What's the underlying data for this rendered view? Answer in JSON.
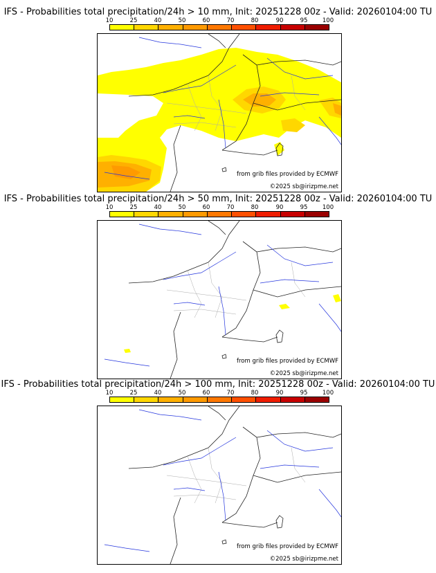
{
  "palette": [
    "#ffff00",
    "#ffd700",
    "#ffb000",
    "#ff9a00",
    "#ff7800",
    "#ff5000",
    "#ef1d00",
    "#c80000",
    "#9a0000",
    "#6a0000"
  ],
  "scale_ticks": [
    "10",
    "25",
    "40",
    "50",
    "60",
    "70",
    "80",
    "90",
    "95",
    "100"
  ],
  "panels": [
    {
      "title": "IFS - Probabilities total precipitation/24h > 10 mm, Init: 20251228 00z - Valid: 20260104:00 TU",
      "credit_source": "from grib files provided by ECMWF",
      "credit_copyright": "©2025 sb@irizpme.net",
      "threshold_mm": 10
    },
    {
      "title": "IFS - Probabilities total precipitation/24h > 50 mm, Init: 20251228 00z - Valid: 20260104:00 TU",
      "credit_source": "from grib files provided by ECMWF",
      "credit_copyright": "©2025 sb@irizpme.net",
      "threshold_mm": 50
    },
    {
      "title": "IFS - Probabilities total precipitation/24h > 100 mm, Init: 20251228 00z - Valid: 20260104:00 TU",
      "credit_source": "from grib files provided by ECMWF",
      "credit_copyright": "©2025 sb@irizpme.net",
      "threshold_mm": 100
    }
  ]
}
